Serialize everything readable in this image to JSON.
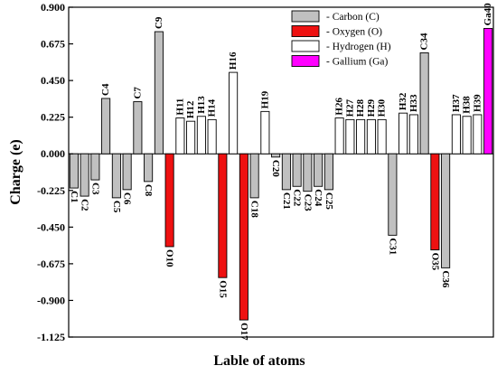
{
  "chart_data": {
    "type": "bar",
    "xlabel": "Lable of atoms",
    "ylabel": "Charge (e)",
    "ylim": [
      -1.125,
      0.9
    ],
    "yticks": [
      "0.900",
      "0.675",
      "0.450",
      "0.225",
      "0.000",
      "-0.225",
      "-0.450",
      "-0.675",
      "-0.900",
      "-1.125"
    ],
    "legend_position": "top-right",
    "legend": [
      {
        "name": "- Carbon (C)",
        "color": "#c0c0c0"
      },
      {
        "name": "- Oxygen (O)",
        "color": "#ee1111"
      },
      {
        "name": "- Hydrogen (H)",
        "color": "#ffffff"
      },
      {
        "name": "- Gallium (Ga)",
        "color": "#ff00ff"
      }
    ],
    "colors": {
      "C": "#c0c0c0",
      "O": "#ee1111",
      "H": "#ffffff",
      "Ga": "#ff00ff"
    },
    "atoms": [
      {
        "label": "C1",
        "element": "C",
        "value": -0.21
      },
      {
        "label": "C2",
        "element": "C",
        "value": -0.26
      },
      {
        "label": "C3",
        "element": "C",
        "value": -0.16
      },
      {
        "label": "C4",
        "element": "C",
        "value": 0.34
      },
      {
        "label": "C5",
        "element": "C",
        "value": -0.27
      },
      {
        "label": "C6",
        "element": "C",
        "value": -0.22
      },
      {
        "label": "C7",
        "element": "C",
        "value": 0.32
      },
      {
        "label": "C8",
        "element": "C",
        "value": -0.17
      },
      {
        "label": "C9",
        "element": "C",
        "value": 0.75
      },
      {
        "label": "O10",
        "element": "O",
        "value": -0.57
      },
      {
        "label": "H11",
        "element": "H",
        "value": 0.22
      },
      {
        "label": "H12",
        "element": "H",
        "value": 0.2
      },
      {
        "label": "H13",
        "element": "H",
        "value": 0.23
      },
      {
        "label": "H14",
        "element": "H",
        "value": 0.21
      },
      {
        "label": "O15",
        "element": "O",
        "value": -0.76
      },
      {
        "label": "H16",
        "element": "H",
        "value": 0.5
      },
      {
        "label": "O17",
        "element": "O",
        "value": -1.02
      },
      {
        "label": "C18",
        "element": "C",
        "value": -0.27
      },
      {
        "label": "H19",
        "element": "H",
        "value": 0.26
      },
      {
        "label": "C20",
        "element": "C",
        "value": -0.02
      },
      {
        "label": "C21",
        "element": "C",
        "value": -0.22
      },
      {
        "label": "C22",
        "element": "C",
        "value": -0.2
      },
      {
        "label": "C23",
        "element": "C",
        "value": -0.23
      },
      {
        "label": "C24",
        "element": "C",
        "value": -0.2
      },
      {
        "label": "C25",
        "element": "C",
        "value": -0.22
      },
      {
        "label": "H26",
        "element": "H",
        "value": 0.22
      },
      {
        "label": "H27",
        "element": "H",
        "value": 0.21
      },
      {
        "label": "H28",
        "element": "H",
        "value": 0.21
      },
      {
        "label": "H29",
        "element": "H",
        "value": 0.21
      },
      {
        "label": "H30",
        "element": "H",
        "value": 0.21
      },
      {
        "label": "C31",
        "element": "C",
        "value": -0.5
      },
      {
        "label": "H32",
        "element": "H",
        "value": 0.25
      },
      {
        "label": "H33",
        "element": "H",
        "value": 0.24
      },
      {
        "label": "C34",
        "element": "C",
        "value": 0.62
      },
      {
        "label": "O35",
        "element": "O",
        "value": -0.59
      },
      {
        "label": "C36",
        "element": "C",
        "value": -0.7
      },
      {
        "label": "H37",
        "element": "H",
        "value": 0.24
      },
      {
        "label": "H38",
        "element": "H",
        "value": 0.23
      },
      {
        "label": "H39",
        "element": "H",
        "value": 0.24
      },
      {
        "label": "Ga40",
        "element": "Ga",
        "value": 0.77
      }
    ]
  }
}
